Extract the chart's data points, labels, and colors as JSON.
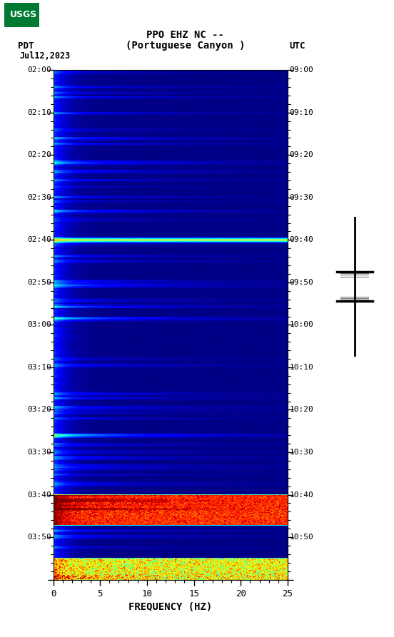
{
  "title_line1": "PPO EHZ NC --",
  "title_line2": "(Portuguese Canyon )",
  "date_label": "Jul12,2023",
  "pdt_label": "PDT",
  "utc_label": "UTC",
  "left_times": [
    "02:00",
    "02:10",
    "02:20",
    "02:30",
    "02:40",
    "02:50",
    "03:00",
    "03:10",
    "03:20",
    "03:30",
    "03:40",
    "03:50"
  ],
  "right_times": [
    "09:00",
    "09:10",
    "09:20",
    "09:30",
    "09:40",
    "09:50",
    "10:00",
    "10:10",
    "10:20",
    "10:30",
    "10:40",
    "10:50"
  ],
  "freq_min": 0,
  "freq_max": 25,
  "freq_ticks": [
    0,
    5,
    10,
    15,
    20,
    25
  ],
  "freq_label": "FREQUENCY (HZ)",
  "usgs_color": "#007a33"
}
